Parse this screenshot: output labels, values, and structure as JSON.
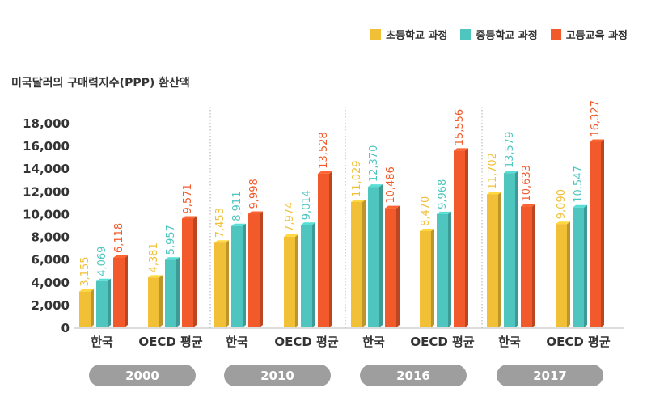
{
  "chart_data": {
    "type": "bar",
    "ylabel": "미국달러의 구매력지수(PPP) 환산액",
    "ylim": [
      0,
      18000
    ],
    "yticks": [
      "0",
      "2,000",
      "4,000",
      "6,000",
      "8,000",
      "10,000",
      "12,000",
      "14,000",
      "16,000",
      "18,000"
    ],
    "legend_position": "top-right",
    "years": [
      "2000",
      "2010",
      "2016",
      "2017"
    ],
    "category_labels": [
      "한국",
      "OECD 평균"
    ],
    "series": [
      {
        "name": "초등학교 과정",
        "color": "#f2c037"
      },
      {
        "name": "중등학교 과정",
        "color": "#4ec6bf"
      },
      {
        "name": "고등교육 과정",
        "color": "#f25a2c"
      }
    ],
    "groups": [
      {
        "year": "2000",
        "category": "한국",
        "values": [
          3155,
          4069,
          6118
        ],
        "labels": [
          "3,155",
          "4,069",
          "6,118"
        ]
      },
      {
        "year": "2000",
        "category": "OECD 평균",
        "values": [
          4381,
          5957,
          9571
        ],
        "labels": [
          "4,381",
          "5,957",
          "9,571"
        ]
      },
      {
        "year": "2010",
        "category": "한국",
        "values": [
          7453,
          8911,
          9998
        ],
        "labels": [
          "7,453",
          "8,911",
          "9,998"
        ]
      },
      {
        "year": "2010",
        "category": "OECD 평균",
        "values": [
          7974,
          9014,
          13528
        ],
        "labels": [
          "7,974",
          "9,014",
          "13,528"
        ]
      },
      {
        "year": "2016",
        "category": "한국",
        "values": [
          11029,
          12370,
          10486
        ],
        "labels": [
          "11,029",
          "12,370",
          "10,486"
        ]
      },
      {
        "year": "2016",
        "category": "OECD 평균",
        "values": [
          8470,
          9968,
          15556
        ],
        "labels": [
          "8,470",
          "9,968",
          "15,556"
        ]
      },
      {
        "year": "2017",
        "category": "한국",
        "values": [
          11702,
          13579,
          10633
        ],
        "labels": [
          "11,702",
          "13,579",
          "10,633"
        ]
      },
      {
        "year": "2017",
        "category": "OECD 평균",
        "values": [
          9090,
          10547,
          16327
        ],
        "labels": [
          "9,090",
          "10,547",
          "16,327"
        ]
      }
    ]
  }
}
